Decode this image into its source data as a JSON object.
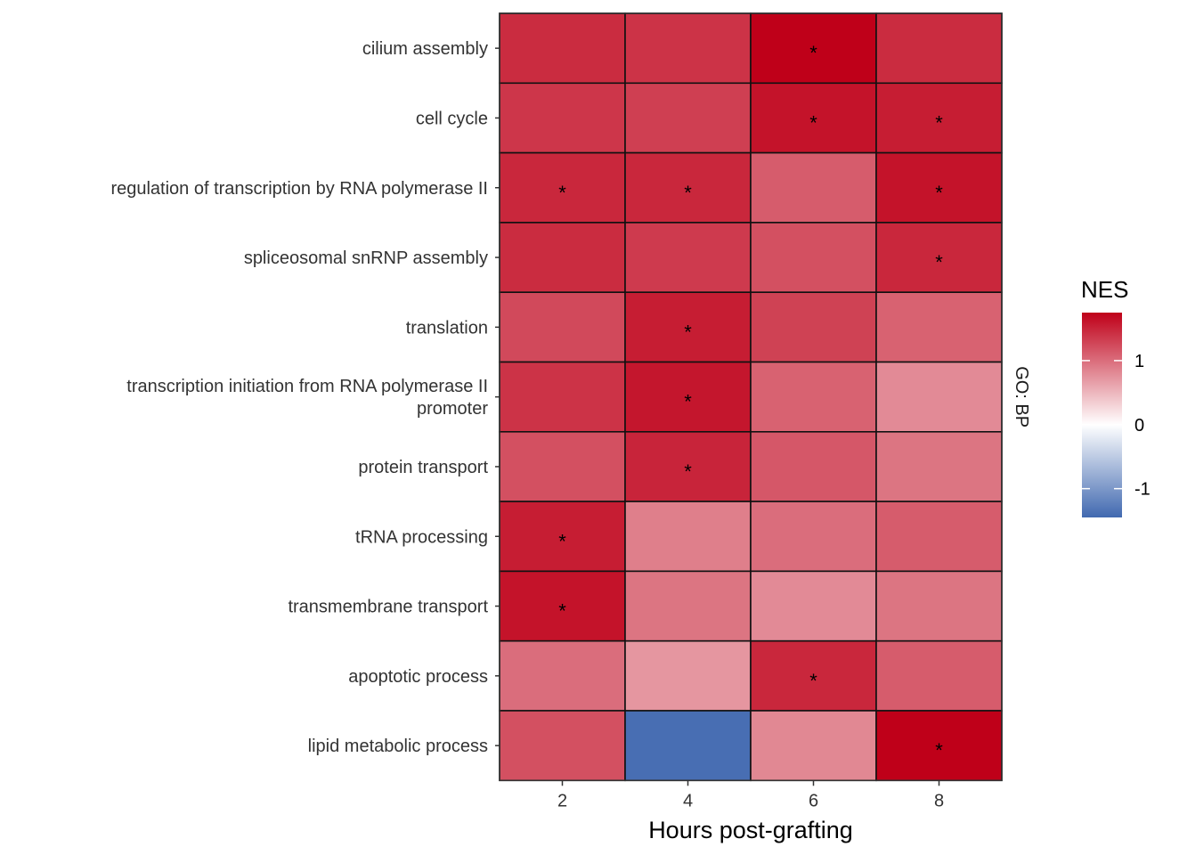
{
  "chart_data": {
    "type": "heatmap",
    "title": "",
    "xlabel": "Hours post-grafting",
    "ylabel": "",
    "facet_label": "GO: BP",
    "x": [
      "2",
      "4",
      "6",
      "8"
    ],
    "y": [
      "cilium assembly",
      "cell cycle",
      "regulation of transcription by RNA polymerase II",
      "spliceosomal snRNP assembly",
      "translation",
      "transcription initiation from RNA polymerase II promoter",
      "protein transport",
      "tRNA processing",
      "transmembrane transport",
      "apoptotic process",
      "lipid metabolic process"
    ],
    "y_display": [
      [
        "cilium assembly"
      ],
      [
        "cell cycle"
      ],
      [
        "regulation of transcription by RNA polymerase II"
      ],
      [
        "spliceosomal snRNP assembly"
      ],
      [
        "translation"
      ],
      [
        "transcription initiation from RNA polymerase II",
        "promoter"
      ],
      [
        "protein transport"
      ],
      [
        "tRNA processing"
      ],
      [
        "transmembrane transport"
      ],
      [
        "apoptotic process"
      ],
      [
        "lipid metabolic process"
      ]
    ],
    "values": [
      [
        1.45,
        1.4,
        1.75,
        1.45
      ],
      [
        1.38,
        1.32,
        1.62,
        1.55
      ],
      [
        1.48,
        1.48,
        1.12,
        1.62
      ],
      [
        1.45,
        1.35,
        1.2,
        1.48
      ],
      [
        1.25,
        1.55,
        1.3,
        1.08
      ],
      [
        1.4,
        1.6,
        1.08,
        0.8
      ],
      [
        1.2,
        1.5,
        1.15,
        0.95
      ],
      [
        1.55,
        0.88,
        1.0,
        1.12
      ],
      [
        1.62,
        0.95,
        0.8,
        0.95
      ],
      [
        1.0,
        0.72,
        1.48,
        1.12
      ],
      [
        1.2,
        -1.4,
        0.82,
        1.75
      ]
    ],
    "significant": [
      [
        false,
        false,
        true,
        false
      ],
      [
        false,
        false,
        true,
        true
      ],
      [
        true,
        true,
        false,
        true
      ],
      [
        false,
        false,
        false,
        true
      ],
      [
        false,
        true,
        false,
        false
      ],
      [
        false,
        true,
        false,
        false
      ],
      [
        false,
        true,
        false,
        false
      ],
      [
        true,
        false,
        false,
        false
      ],
      [
        true,
        false,
        false,
        false
      ],
      [
        false,
        false,
        true,
        false
      ],
      [
        false,
        false,
        false,
        true
      ]
    ],
    "marker": "*",
    "legend": {
      "title": "NES",
      "placement": "right",
      "ticks": [
        1,
        0,
        -1
      ],
      "tick_labels": [
        "1",
        "0",
        "-1"
      ],
      "range": [
        -1.45,
        1.75
      ],
      "colors": {
        "low": "#4169b0",
        "mid": "#ffffff",
        "high": "#bf0019"
      }
    },
    "grid": false
  }
}
